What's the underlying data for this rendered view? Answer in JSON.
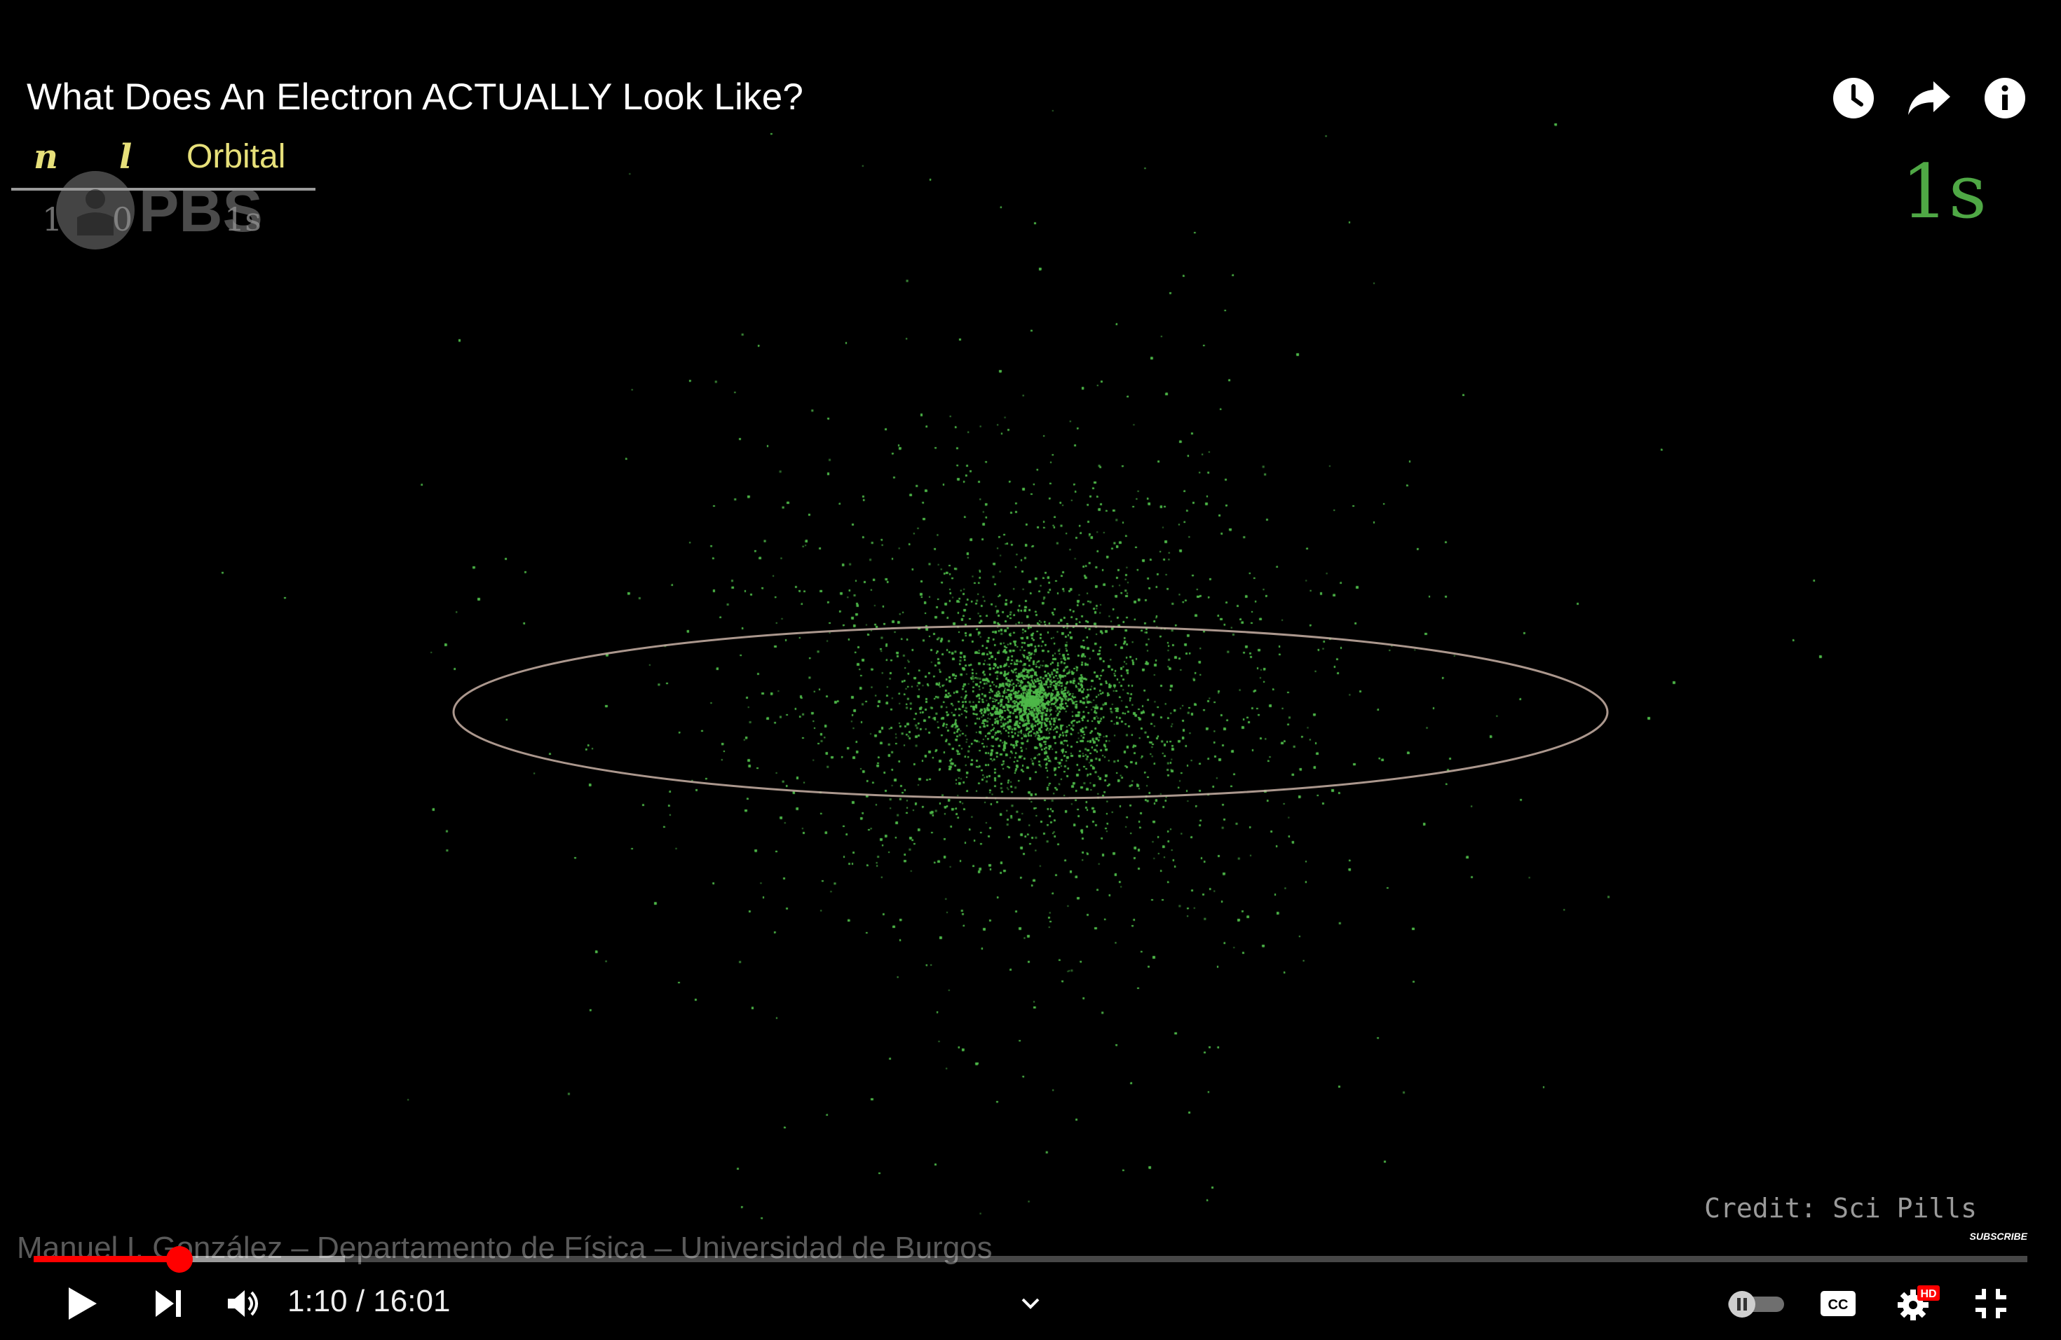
{
  "video": {
    "title": "What Does An Electron ACTUALLY Look Like?",
    "point_color": "#4fb84a",
    "ring_color": "#c9b2a6"
  },
  "top_actions": [
    {
      "name": "watch-later-icon",
      "label": "Watch later"
    },
    {
      "name": "share-icon",
      "label": "Share"
    },
    {
      "name": "info-icon",
      "label": "Info"
    }
  ],
  "overlay": {
    "table": {
      "headers": [
        "n",
        "l",
        "Orbital"
      ],
      "row": [
        "1",
        "0",
        "1s"
      ],
      "watermark": "PBS"
    },
    "orbital_label": "1s",
    "credit": "Credit: Sci Pills",
    "subscribe": "SUBSCRIBE",
    "attribution": "Manuel I. González – Departamento de Física – Universidad de Burgos"
  },
  "player": {
    "progress": 0.073,
    "buffered": 0.156,
    "time": "1:10 / 16:01",
    "autoplay": "off",
    "quality_badge": "HD",
    "accent": "#ff0000",
    "controls": [
      "play-icon",
      "next-icon",
      "volume-icon",
      "chevron-down-icon",
      "autoplay-toggle",
      "cc-icon",
      "settings-icon",
      "exit-fullscreen-icon"
    ]
  }
}
